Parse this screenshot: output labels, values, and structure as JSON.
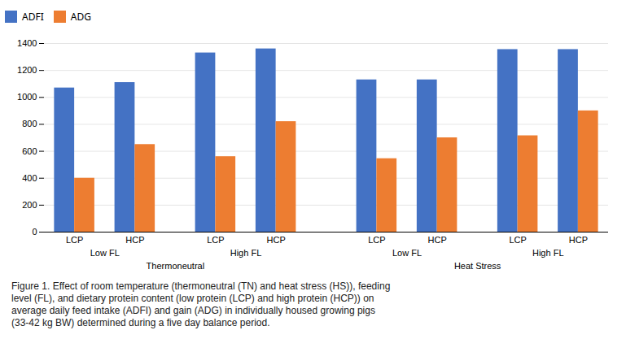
{
  "chart_data": {
    "type": "bar",
    "categories": [
      "LCP",
      "HCP",
      "LCP",
      "HCP",
      "LCP",
      "HCP",
      "LCP",
      "HCP"
    ],
    "category_groups": [
      [
        "Low FL",
        "Low FL",
        "High FL",
        "High FL",
        "Low FL",
        "Low FL",
        "High FL",
        "High FL"
      ],
      [
        "Thermoneutral",
        "Thermoneutral",
        "Thermoneutral",
        "Thermoneutral",
        "Heat Stress",
        "Heat Stress",
        "Heat Stress",
        "Heat Stress"
      ]
    ],
    "series": [
      {
        "name": "ADFI",
        "color": "#4472C4",
        "values": [
          1070,
          1110,
          1330,
          1360,
          1130,
          1130,
          1355,
          1355
        ]
      },
      {
        "name": "ADG",
        "color": "#ED7D31",
        "values": [
          400,
          650,
          560,
          820,
          545,
          700,
          715,
          900
        ]
      }
    ],
    "ylim": [
      0,
      1400
    ],
    "yticks": [
      0,
      200,
      400,
      600,
      800,
      1000,
      1200,
      1400
    ],
    "grid": true,
    "legend": "top",
    "caption": "Figure 1. Effect of room temperature (thermoneutral (TN) and heat stress (HS)), feeding\nlevel (FL), and dietary protein content (low protein (LCP) and high protein (HCP)) on\naverage daily feed intake (ADFI) and gain (ADG) in individually housed growing pigs\n(33-42 kg BW) determined during a five day balance period."
  }
}
